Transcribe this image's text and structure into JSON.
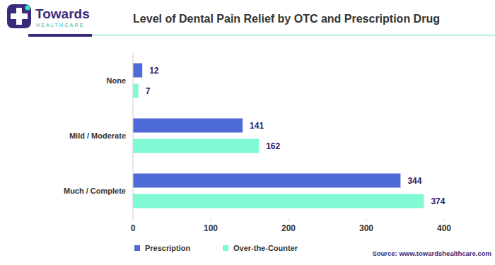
{
  "chart_data": {
    "type": "bar",
    "orientation": "horizontal",
    "title": "Level of Dental Pain Relief by OTC and Prescription Drug",
    "annotations": {
      "brand": "Towards",
      "brand_tagline": "HEALTHCARE",
      "source": "Source: www.towardshealthcare.com"
    },
    "categories": [
      "None",
      "Mild / Moderate",
      "Much / Complete"
    ],
    "series": [
      {
        "name": "Prescription",
        "color": "#4f6bd8",
        "values": [
          12,
          141,
          344
        ]
      },
      {
        "name": "Over-the-Counter",
        "color": "#80fad4",
        "values": [
          7,
          162,
          374
        ]
      }
    ],
    "xlim": [
      0,
      400
    ],
    "xticks": [
      0,
      100,
      200,
      300,
      400
    ],
    "grid": false,
    "legend": "bottom-left",
    "data_labels": true
  }
}
